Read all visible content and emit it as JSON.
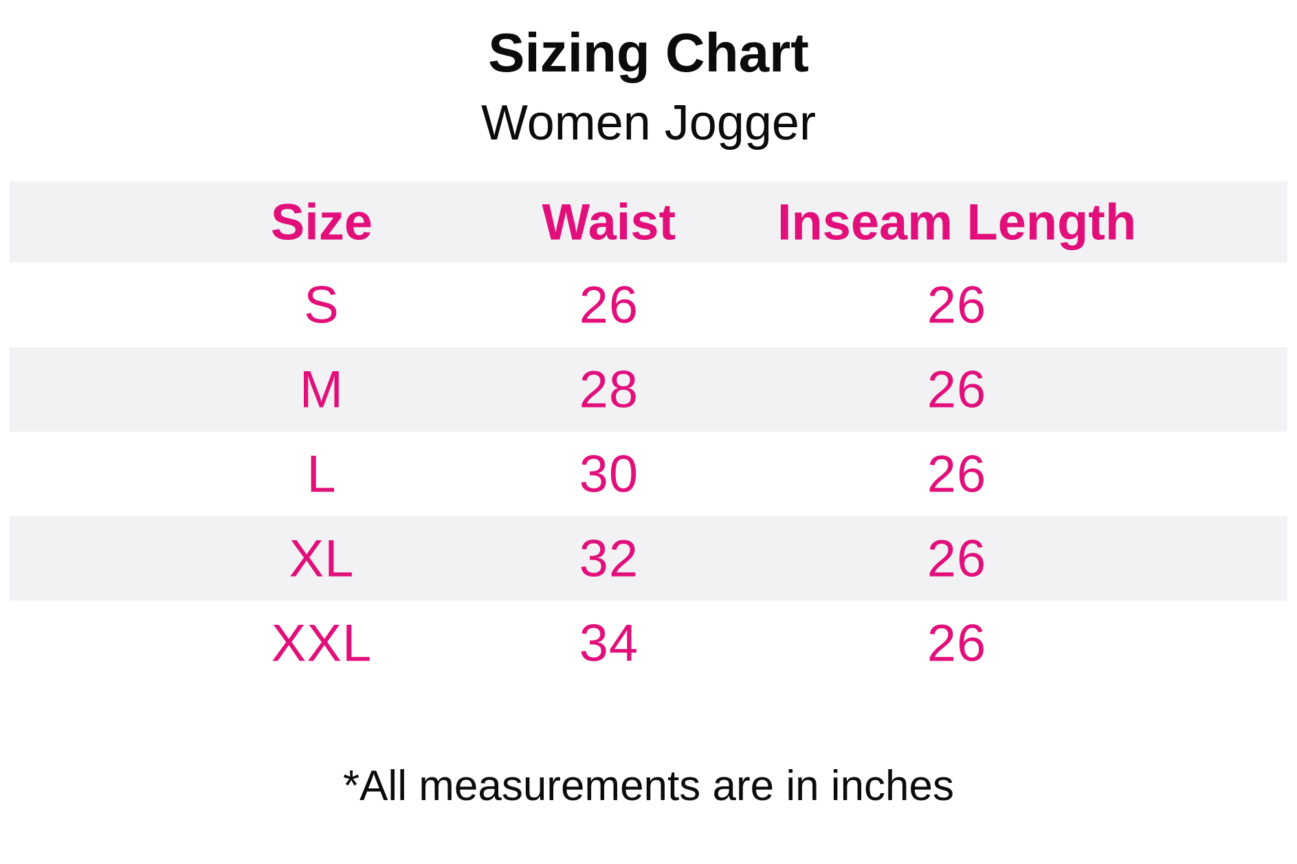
{
  "chart_data": {
    "type": "table",
    "title": "Sizing Chart",
    "subtitle": "Women Jogger",
    "columns": [
      "Size",
      "Waist",
      "Inseam Length"
    ],
    "rows": [
      [
        "S",
        "26",
        "26"
      ],
      [
        "M",
        "28",
        "26"
      ],
      [
        "L",
        "30",
        "26"
      ],
      [
        "XL",
        "32",
        "26"
      ],
      [
        "XXL",
        "34",
        "26"
      ]
    ],
    "footnote": "*All measurements are in inches",
    "units": "inches",
    "layout": "header row and alternating data rows shaded light gray; all table text centered per column"
  },
  "colors": {
    "accent": "#E20F7B",
    "row_stripe": "#F2F2F4",
    "heading_text": "#0B0B0B",
    "background": "#FFFFFF"
  }
}
